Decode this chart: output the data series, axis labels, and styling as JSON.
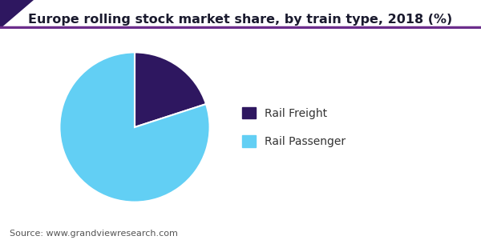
{
  "title": "Europe rolling stock market share, by train type, 2018 (%)",
  "values": [
    20,
    80
  ],
  "labels": [
    "Rail Freight",
    "Rail Passenger"
  ],
  "colors": [
    "#2e1760",
    "#62cff4"
  ],
  "start_angle": 90,
  "source_text": "Source: www.grandviewresearch.com",
  "header_line_color": "#6b2d8b",
  "triangle_color": "#2e1760",
  "background_color": "#ffffff",
  "title_fontsize": 11.5,
  "title_fontweight": "bold",
  "title_color": "#1a1a2e",
  "legend_fontsize": 10,
  "source_fontsize": 8,
  "legend_label_color": "#333333"
}
